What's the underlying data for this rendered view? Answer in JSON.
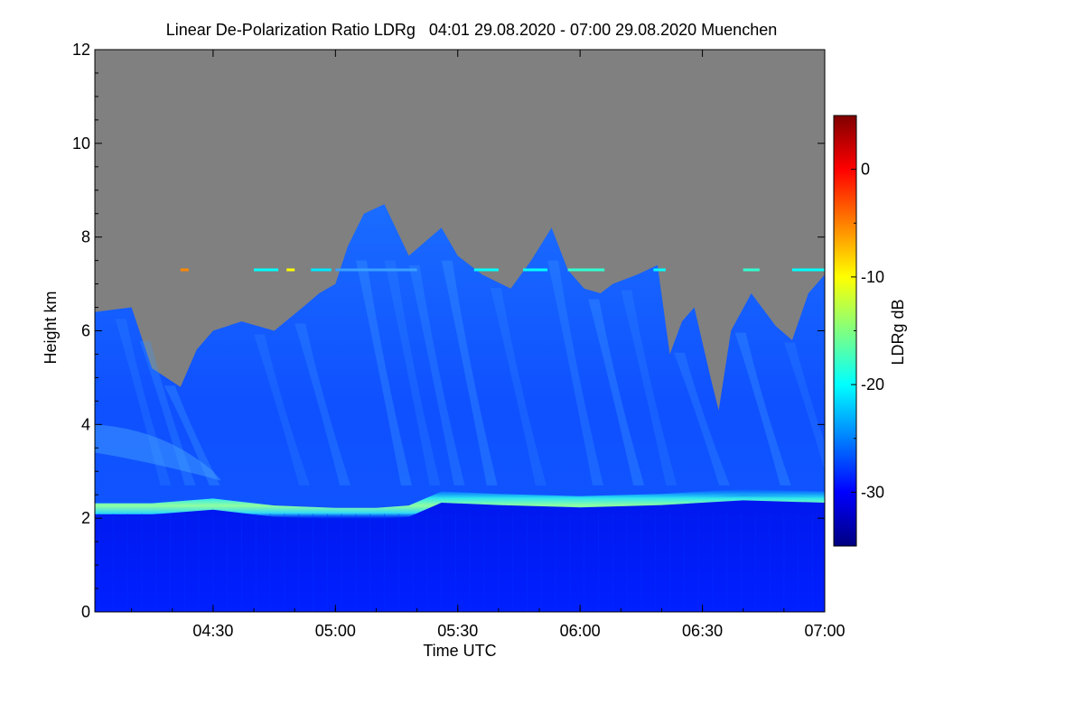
{
  "chart_data": {
    "type": "heatmap",
    "title": "Linear De-Polarization Ratio LDRg   04:01 29.08.2020 - 07:00 29.08.2020 Muenchen",
    "xlabel": "Time UTC",
    "ylabel": "Height km",
    "xlim_minutes_utc": [
      241,
      420
    ],
    "ylim_km": [
      0,
      12
    ],
    "x_ticks": [
      {
        "minutes": 270,
        "label": "04:30"
      },
      {
        "minutes": 300,
        "label": "05:00"
      },
      {
        "minutes": 330,
        "label": "05:30"
      },
      {
        "minutes": 360,
        "label": "06:00"
      },
      {
        "minutes": 390,
        "label": "06:30"
      },
      {
        "minutes": 420,
        "label": "07:00"
      }
    ],
    "y_ticks": [
      {
        "value": 0,
        "label": "0"
      },
      {
        "value": 2,
        "label": "2"
      },
      {
        "value": 4,
        "label": "4"
      },
      {
        "value": 6,
        "label": "6"
      },
      {
        "value": 8,
        "label": "8"
      },
      {
        "value": 10,
        "label": "10"
      },
      {
        "value": 12,
        "label": "12"
      }
    ],
    "colorbar": {
      "label": "LDRg dB",
      "range": [
        -35,
        5
      ],
      "ticks": [
        {
          "value": 0,
          "label": "0"
        },
        {
          "value": -10,
          "label": "-10"
        },
        {
          "value": -20,
          "label": "-20"
        },
        {
          "value": -30,
          "label": "-30"
        }
      ],
      "stops": [
        "#000080",
        "#0000ff",
        "#0080ff",
        "#00ffff",
        "#80ff80",
        "#ffff00",
        "#ff8000",
        "#ff0000",
        "#800000"
      ]
    },
    "no_data_color": "#808080",
    "layers": {
      "melting_layer_height_km": [
        {
          "t": 241,
          "h": 2.2
        },
        {
          "t": 255,
          "h": 2.2
        },
        {
          "t": 270,
          "h": 2.3
        },
        {
          "t": 285,
          "h": 2.15
        },
        {
          "t": 300,
          "h": 2.1
        },
        {
          "t": 310,
          "h": 2.1
        },
        {
          "t": 318,
          "h": 2.15
        },
        {
          "t": 326,
          "h": 2.45
        },
        {
          "t": 340,
          "h": 2.4
        },
        {
          "t": 360,
          "h": 2.35
        },
        {
          "t": 380,
          "h": 2.4
        },
        {
          "t": 400,
          "h": 2.5
        },
        {
          "t": 420,
          "h": 2.45
        }
      ],
      "melting_layer_ldr_db": -21,
      "below_layer_ldr_db": -32,
      "above_layer_ldr_db": -28,
      "cloud_top_km": [
        {
          "t": 241,
          "h": 6.4
        },
        {
          "t": 250,
          "h": 6.5
        },
        {
          "t": 255,
          "h": 5.2
        },
        {
          "t": 262,
          "h": 4.8
        },
        {
          "t": 266,
          "h": 5.6
        },
        {
          "t": 270,
          "h": 6.0
        },
        {
          "t": 277,
          "h": 6.2
        },
        {
          "t": 285,
          "h": 6.0
        },
        {
          "t": 292,
          "h": 6.5
        },
        {
          "t": 296,
          "h": 6.8
        },
        {
          "t": 300,
          "h": 7.0
        },
        {
          "t": 303,
          "h": 7.8
        },
        {
          "t": 307,
          "h": 8.5
        },
        {
          "t": 312,
          "h": 8.7
        },
        {
          "t": 318,
          "h": 7.6
        },
        {
          "t": 322,
          "h": 7.9
        },
        {
          "t": 326,
          "h": 8.2
        },
        {
          "t": 330,
          "h": 7.6
        },
        {
          "t": 336,
          "h": 7.2
        },
        {
          "t": 343,
          "h": 6.9
        },
        {
          "t": 348,
          "h": 7.5
        },
        {
          "t": 353,
          "h": 8.2
        },
        {
          "t": 357,
          "h": 7.3
        },
        {
          "t": 361,
          "h": 6.9
        },
        {
          "t": 365,
          "h": 6.8
        },
        {
          "t": 368,
          "h": 7.0
        },
        {
          "t": 374,
          "h": 7.2
        },
        {
          "t": 379,
          "h": 7.4
        },
        {
          "t": 382,
          "h": 5.5
        },
        {
          "t": 385,
          "h": 6.2
        },
        {
          "t": 388,
          "h": 6.5
        },
        {
          "t": 392,
          "h": 5.0
        },
        {
          "t": 394,
          "h": 4.3
        },
        {
          "t": 397,
          "h": 6.0
        },
        {
          "t": 402,
          "h": 6.8
        },
        {
          "t": 408,
          "h": 6.1
        },
        {
          "t": 412,
          "h": 5.8
        },
        {
          "t": 416,
          "h": 6.8
        },
        {
          "t": 420,
          "h": 7.2
        }
      ],
      "thin_layer_height_km": 7.3
    }
  }
}
